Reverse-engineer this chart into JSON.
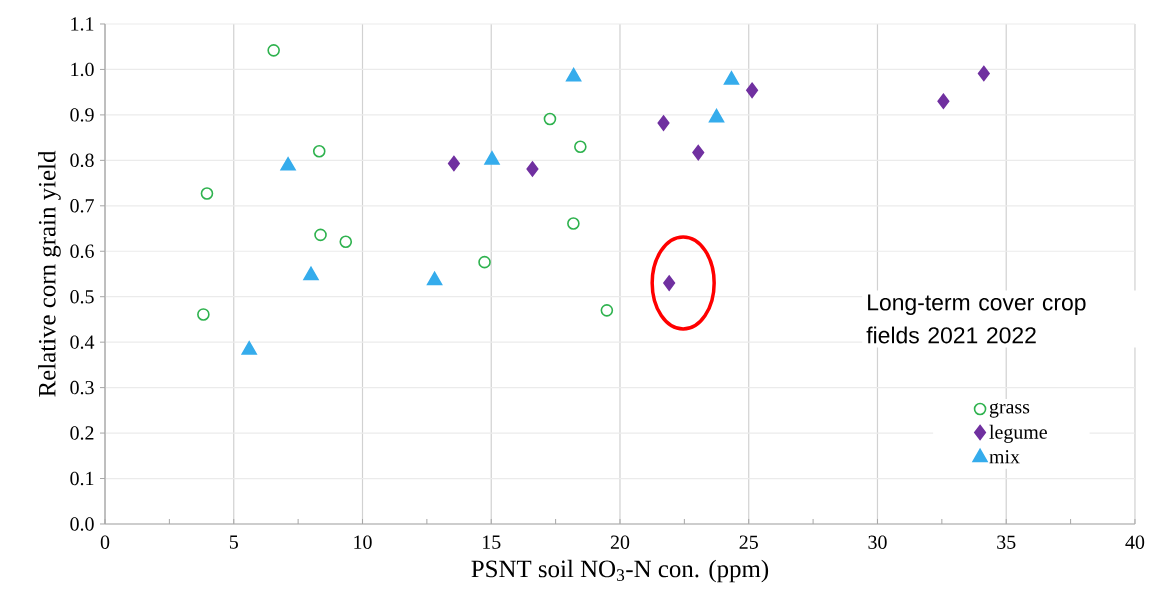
{
  "chart_data": {
    "type": "scatter",
    "xlabel": "PSNT soil NO$_{3}$-N con. (ppm)",
    "ylabel": "Relative corn grain yield",
    "legend_title": "Long-term cover crop fields 2021 2022",
    "legend": "right",
    "grid": true,
    "xlim": [
      0,
      40
    ],
    "xticks": [
      0,
      5,
      10,
      15,
      20,
      25,
      30,
      35,
      40
    ],
    "ylim": [
      0,
      1.1
    ],
    "yticks": [
      {
        "value": 0,
        "label": "0.0"
      },
      {
        "value": 0.1,
        "label": "0.1"
      },
      {
        "value": 0.2,
        "label": "0.2"
      },
      {
        "value": 0.3,
        "label": "0.3"
      },
      {
        "value": 0.4,
        "label": "0.4"
      },
      {
        "value": 0.5,
        "label": "0.5"
      },
      {
        "value": 0.6,
        "label": "0.6"
      },
      {
        "value": 0.7,
        "label": "0.7"
      },
      {
        "value": 0.8,
        "label": "0.8"
      },
      {
        "value": 0.9,
        "label": "0.9"
      },
      {
        "value": 1.0,
        "label": "1.0"
      },
      {
        "value": 1.1,
        "label": "1.1"
      }
    ],
    "series": [
      {
        "name": "grass",
        "color": "#2eb24e",
        "marker": "circle",
        "x": [
          6.55,
          3.96,
          8.32,
          8.37,
          9.35,
          3.82,
          14.74,
          17.28,
          18.46,
          18.19,
          19.49
        ],
        "values": [
          1.042,
          0.727,
          0.82,
          0.636,
          0.621,
          0.461,
          0.576,
          0.891,
          0.83,
          0.661,
          0.47
        ]
      },
      {
        "name": "legume",
        "color": "#7030a0",
        "marker": "diamond",
        "x": [
          13.55,
          16.6,
          21.69,
          23.04,
          25.13,
          21.91,
          32.56,
          34.13
        ],
        "values": [
          0.793,
          0.781,
          0.882,
          0.817,
          0.954,
          0.53,
          0.93,
          0.991
        ]
      },
      {
        "name": "mix",
        "color": "#35acec",
        "marker": "triangle",
        "x": [
          5.6,
          7.11,
          8.0,
          12.8,
          15.03,
          18.2,
          23.75,
          24.33
        ],
        "values": [
          0.383,
          0.788,
          0.547,
          0.536,
          0.801,
          0.984,
          0.894,
          0.977
        ]
      }
    ]
  }
}
